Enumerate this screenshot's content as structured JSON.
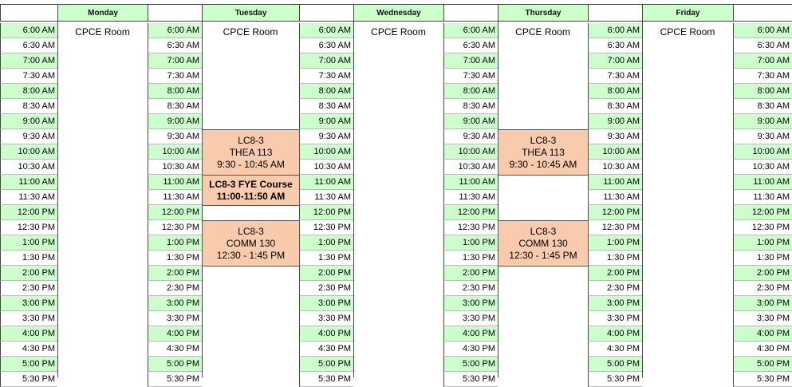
{
  "days": [
    {
      "name": "Monday",
      "room": "CPCE Room",
      "events": []
    },
    {
      "name": "Tuesday",
      "room": "CPCE Room",
      "events": [
        {
          "lines": [
            "LC8-3",
            "THEA 113",
            "9:30 - 10:45 AM"
          ],
          "bold": false
        },
        {
          "lines": [
            "LC8-3 FYE Course",
            "11:00-11:50 AM"
          ],
          "bold": true
        },
        {
          "lines": [
            "LC8-3",
            "COMM 130",
            "12:30 - 1:45 PM"
          ],
          "bold": false
        }
      ]
    },
    {
      "name": "Wednesday",
      "room": "CPCE Room",
      "events": []
    },
    {
      "name": "Thursday",
      "room": "CPCE Room",
      "events": [
        {
          "lines": [
            "LC8-3",
            "THEA 113",
            "9:30 - 10:45 AM"
          ],
          "bold": false
        },
        {
          "lines": [
            "LC8-3",
            "COMM 130",
            "12:30 - 1:45 PM"
          ],
          "bold": false
        }
      ]
    },
    {
      "name": "Friday",
      "room": "CPCE Room",
      "events": []
    }
  ],
  "times": [
    "6:00 AM",
    "6:30 AM",
    "7:00 AM",
    "7:30 AM",
    "8:00 AM",
    "8:30 AM",
    "9:00 AM",
    "9:30 AM",
    "10:00 AM",
    "10:30 AM",
    "11:00 AM",
    "11:30 AM",
    "12:00 PM",
    "12:30 PM",
    "1:00 PM",
    "1:30 PM",
    "2:00 PM",
    "2:30 PM",
    "3:00 PM",
    "3:30 PM",
    "4:00 PM",
    "4:30 PM",
    "5:00 PM",
    "5:30 PM"
  ]
}
